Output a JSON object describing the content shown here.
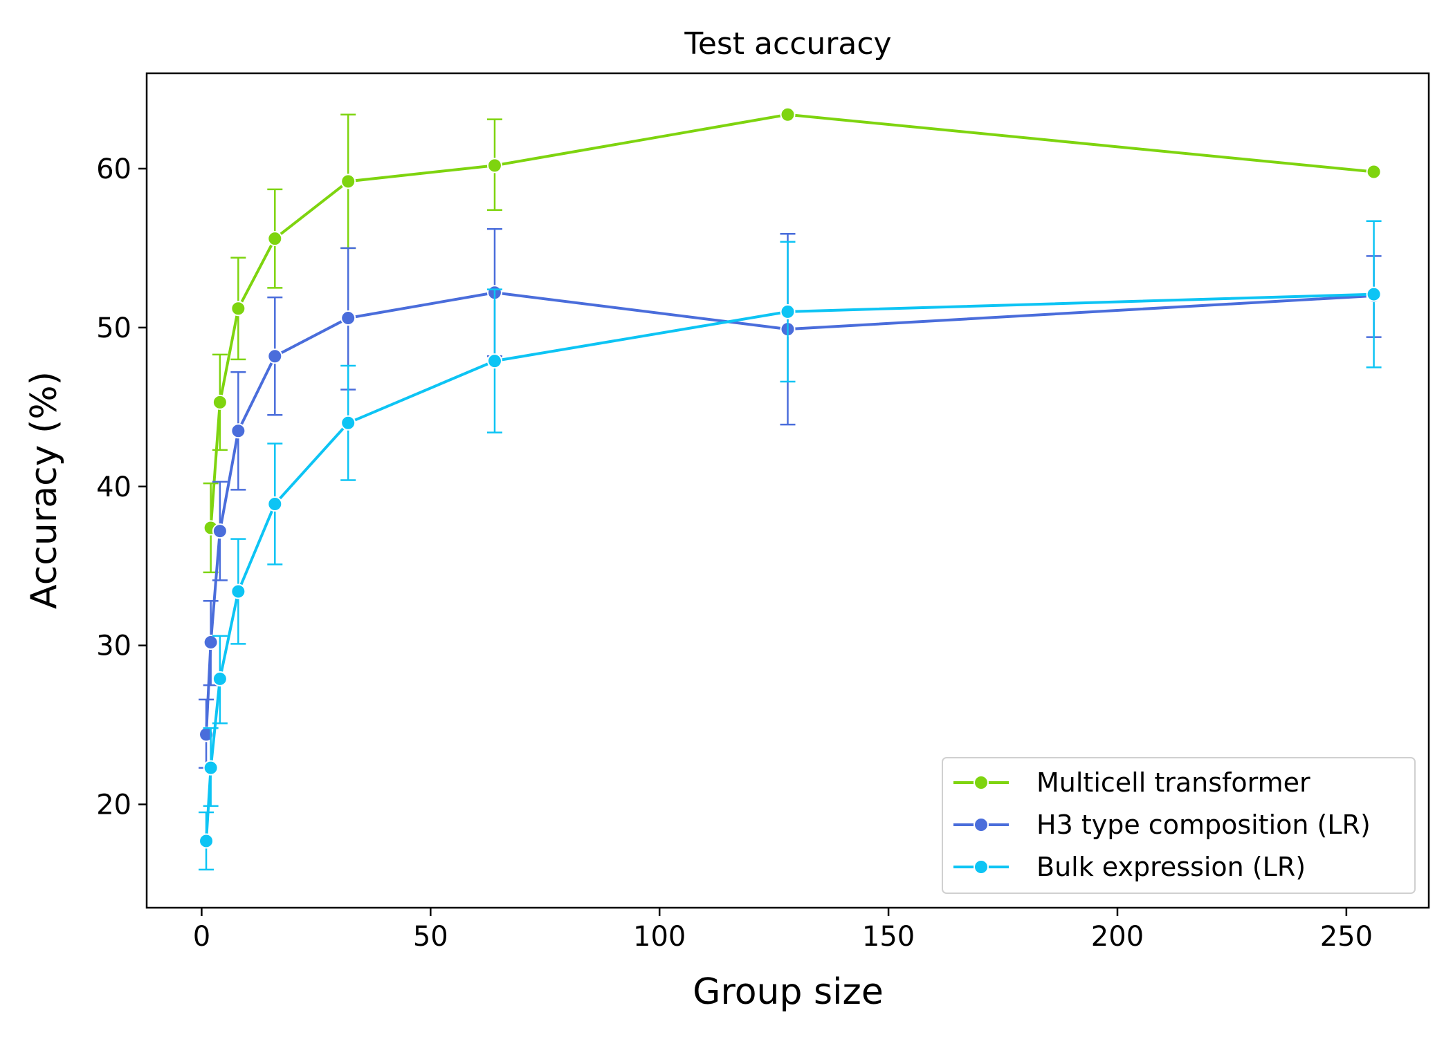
{
  "chart_data": {
    "type": "line",
    "title": "Test accuracy",
    "xlabel": "Group size",
    "ylabel": "Accuracy (%)",
    "xlim": [
      -12,
      268
    ],
    "ylim": [
      13.5,
      66
    ],
    "x_ticks": [
      0,
      50,
      100,
      150,
      200,
      250
    ],
    "y_ticks": [
      20,
      30,
      40,
      50,
      60
    ],
    "grid": false,
    "legend_position": "bottom-right",
    "x": [
      1,
      2,
      4,
      8,
      16,
      32,
      64,
      128,
      256
    ],
    "series": [
      {
        "name": "Multicell transformer",
        "color": "#7ed40f",
        "x": [
          2,
          4,
          8,
          16,
          32,
          64,
          128,
          256
        ],
        "values": [
          37.4,
          45.3,
          51.2,
          55.6,
          59.2,
          60.2,
          63.4,
          59.8
        ],
        "err_low": [
          34.6,
          42.3,
          48.0,
          52.5,
          55.0,
          57.4,
          63.4,
          59.8
        ],
        "err_high": [
          40.2,
          48.3,
          54.4,
          58.7,
          63.4,
          63.1,
          63.4,
          59.8
        ]
      },
      {
        "name": "H3 type composition (LR)",
        "color": "#4a6ddb",
        "x": [
          1,
          2,
          4,
          8,
          16,
          32,
          64,
          128,
          256
        ],
        "values": [
          24.4,
          30.2,
          37.2,
          43.5,
          48.2,
          50.6,
          52.2,
          49.9,
          52.0
        ],
        "err_low": [
          22.3,
          27.5,
          34.1,
          39.8,
          44.5,
          46.1,
          48.2,
          43.9,
          49.4
        ],
        "err_high": [
          26.6,
          32.8,
          40.3,
          47.2,
          51.9,
          55.0,
          56.2,
          55.9,
          54.5
        ]
      },
      {
        "name": "Bulk expression (LR)",
        "color": "#0dc4f4",
        "x": [
          1,
          2,
          4,
          8,
          16,
          32,
          64,
          128,
          256
        ],
        "values": [
          17.7,
          22.3,
          27.9,
          33.4,
          38.9,
          44.0,
          47.9,
          51.0,
          52.1
        ],
        "err_low": [
          15.9,
          19.9,
          25.1,
          30.1,
          35.1,
          40.4,
          43.4,
          46.6,
          47.5
        ],
        "err_high": [
          19.5,
          24.8,
          30.6,
          36.7,
          42.7,
          47.6,
          52.4,
          55.4,
          56.7
        ]
      }
    ]
  }
}
